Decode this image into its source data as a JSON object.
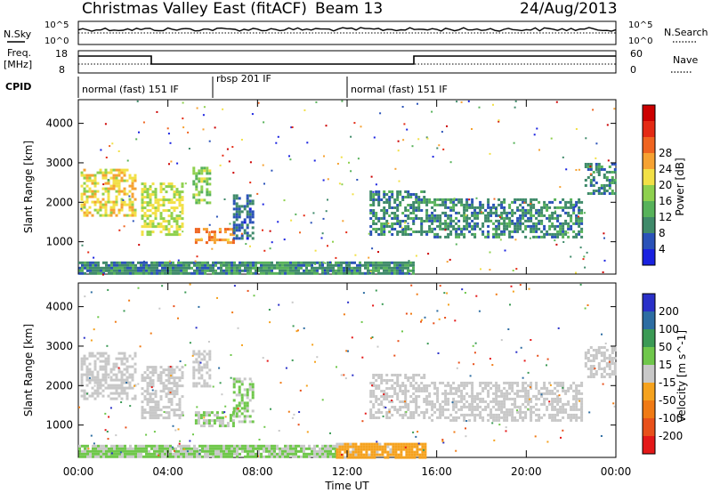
{
  "header": {
    "title": "Christmas Valley East (fitACF)",
    "beam": "Beam 13",
    "date": "24/Aug/2013"
  },
  "params": {
    "nsky_label": "N.Sky",
    "nsky_top": "10^5",
    "nsky_bottom": "10^0",
    "nsearch_label": "N.Search",
    "nsearch_top": "10^5",
    "nsearch_bottom": "10^0",
    "freq_label_1": "Freq.",
    "freq_label_2": "[MHz]",
    "freq_top": "18",
    "freq_bottom": "8",
    "nave_label": "Nave",
    "nave_top": "60",
    "nave_bottom": "0",
    "cpid_label": "CPID"
  },
  "cpid_segments": [
    {
      "label": "normal (fast) 151 IF",
      "start_hour": 0.0
    },
    {
      "label": "rbsp 201 IF",
      "start_hour": 6.0
    },
    {
      "label": "normal (fast) 151 IF",
      "start_hour": 12.0
    }
  ],
  "colorbars": {
    "power": {
      "label": "Power [dB]",
      "ticks": [
        "4",
        "8",
        "12",
        "16",
        "20",
        "24",
        "28"
      ],
      "colors": [
        "#1a22e0",
        "#2a52b8",
        "#3f8a6a",
        "#57b25a",
        "#8ed04e",
        "#f2e046",
        "#f6a232",
        "#ef6420",
        "#e42a14",
        "#cc0000"
      ]
    },
    "velocity": {
      "label": "Velocity [m s^-1]",
      "ticks": [
        "200",
        "100",
        "50",
        "15",
        "-15",
        "-50",
        "-100",
        "-200"
      ],
      "colors": [
        "#2a30c8",
        "#2d6da2",
        "#3b9a55",
        "#6fc74b",
        "#c8c8c8",
        "#f5a21e",
        "#f07a14",
        "#e8501a",
        "#e41818"
      ]
    }
  },
  "axes": {
    "y_label": "Slant Range [km]",
    "y_ticks": [
      "1000",
      "2000",
      "3000",
      "4000"
    ],
    "x_label": "Time UT",
    "x_ticks": [
      "00:00",
      "04:00",
      "08:00",
      "12:00",
      "16:00",
      "20:00",
      "00:00"
    ]
  },
  "chart_data": [
    {
      "type": "heatmap",
      "name": "Power",
      "xlabel": "Time UT",
      "ylabel": "Slant Range [km]",
      "xlim": [
        0,
        24
      ],
      "ylim": [
        180,
        4600
      ],
      "colorbar_label": "Power [dB]",
      "colorbar_range": [
        0,
        32
      ],
      "regions": [
        {
          "t": [
            0.1,
            2.6
          ],
          "r": [
            1650,
            2850
          ],
          "value": 18
        },
        {
          "t": [
            2.8,
            4.7
          ],
          "r": [
            1200,
            2500
          ],
          "value": 16
        },
        {
          "t": [
            5.1,
            5.9
          ],
          "r": [
            2000,
            2900
          ],
          "value": 14
        },
        {
          "t": [
            5.2,
            6.9
          ],
          "r": [
            950,
            1350
          ],
          "value": 22
        },
        {
          "t": [
            6.9,
            7.8
          ],
          "r": [
            1100,
            2200
          ],
          "value": 6
        },
        {
          "t": [
            0.0,
            15.0
          ],
          "r": [
            200,
            500
          ],
          "value": 8
        },
        {
          "t": [
            13.0,
            15.5
          ],
          "r": [
            1200,
            2300
          ],
          "value": 8
        },
        {
          "t": [
            15.5,
            22.5
          ],
          "r": [
            1100,
            2100
          ],
          "value": 8
        },
        {
          "t": [
            22.6,
            24.0
          ],
          "r": [
            2200,
            3000
          ],
          "value": 8
        }
      ]
    },
    {
      "type": "heatmap",
      "name": "Velocity",
      "xlabel": "Time UT",
      "ylabel": "Slant Range [km]",
      "xlim": [
        0,
        24
      ],
      "ylim": [
        180,
        4600
      ],
      "colorbar_label": "Velocity [m s^-1]",
      "colorbar_range": [
        -250,
        250
      ],
      "regions": [
        {
          "t": [
            0.1,
            2.6
          ],
          "r": [
            1650,
            2850
          ],
          "value": 0
        },
        {
          "t": [
            2.8,
            4.7
          ],
          "r": [
            1200,
            2500
          ],
          "value": 0
        },
        {
          "t": [
            5.1,
            5.9
          ],
          "r": [
            2000,
            2900
          ],
          "value": 0
        },
        {
          "t": [
            5.2,
            6.9
          ],
          "r": [
            950,
            1350
          ],
          "value": 30
        },
        {
          "t": [
            6.9,
            7.8
          ],
          "r": [
            1100,
            2200
          ],
          "value": 30
        },
        {
          "t": [
            0.0,
            11.5
          ],
          "r": [
            200,
            500
          ],
          "value": 30
        },
        {
          "t": [
            11.5,
            15.5
          ],
          "r": [
            200,
            550
          ],
          "value": -40
        },
        {
          "t": [
            13.0,
            15.5
          ],
          "r": [
            1200,
            2300
          ],
          "value": 0
        },
        {
          "t": [
            15.5,
            22.5
          ],
          "r": [
            1100,
            2100
          ],
          "value": 0
        },
        {
          "t": [
            22.6,
            24.0
          ],
          "r": [
            2200,
            3000
          ],
          "value": 0
        }
      ]
    }
  ]
}
